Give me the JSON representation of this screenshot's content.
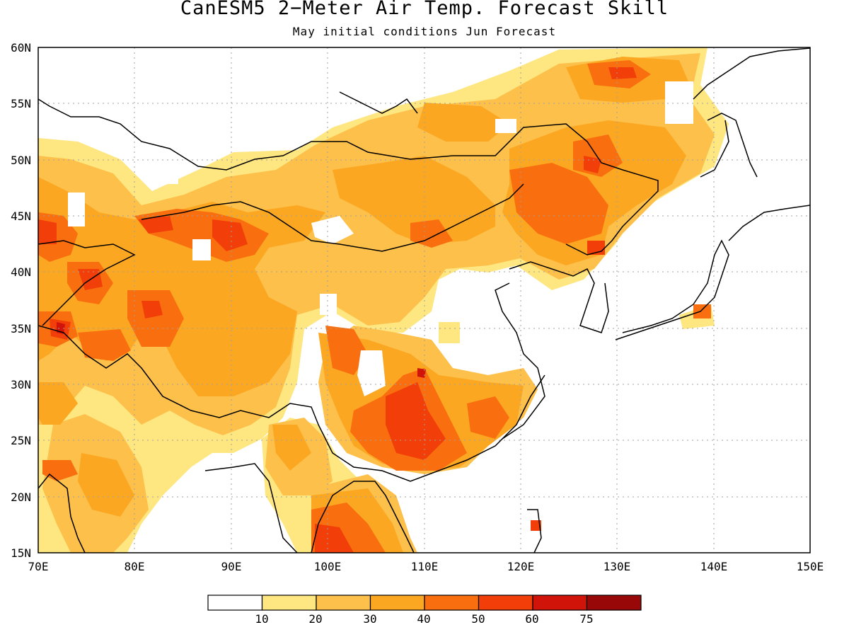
{
  "title": "CanESM5 2−Meter Air Temp. Forecast Skill",
  "subtitle": "May initial conditions  Jun Forecast",
  "lon_labels": [
    "70E",
    "80E",
    "90E",
    "100E",
    "110E",
    "120E",
    "130E",
    "140E",
    "150E"
  ],
  "lat_labels": [
    "60N",
    "55N",
    "50N",
    "45N",
    "40N",
    "35N",
    "30N",
    "25N",
    "20N",
    "15N"
  ],
  "colorbar": {
    "colors": [
      "#ffffff",
      "#fee680",
      "#fdc04a",
      "#fca722",
      "#f96e0e",
      "#f23e08",
      "#d01409",
      "#980808"
    ],
    "labels": [
      "10",
      "20",
      "30",
      "40",
      "50",
      "60",
      "75"
    ]
  },
  "chart_data": {
    "type": "heatmap",
    "title": "CanESM5 2−Meter Air Temp. Forecast Skill",
    "subtitle": "May initial conditions  Jun Forecast",
    "lon_range": [
      70,
      150
    ],
    "lat_range": [
      15,
      60
    ],
    "levels": [
      10,
      20,
      30,
      40,
      50,
      60,
      75
    ],
    "grid": "dotted"
  }
}
